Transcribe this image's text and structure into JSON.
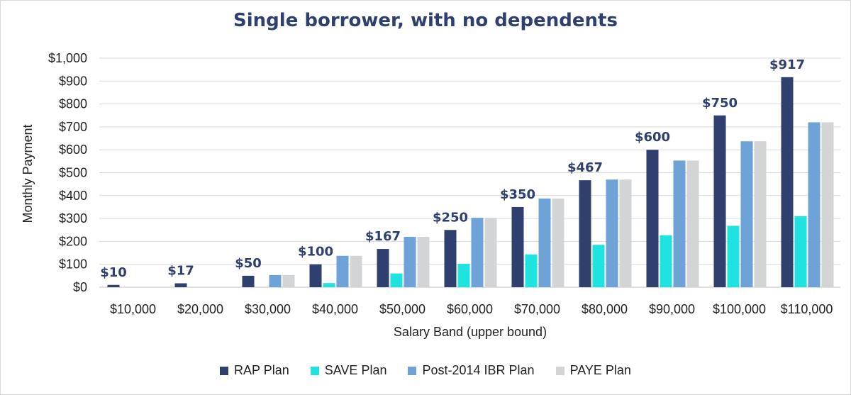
{
  "chart_data": {
    "type": "bar",
    "title": "Single borrower, with no dependents",
    "xlabel": "Salary Band (upper bound)",
    "ylabel": "Monthly Payment",
    "ylim": [
      0,
      1000
    ],
    "yticks": [
      "$0",
      "$100",
      "$200",
      "$300",
      "$400",
      "$500",
      "$600",
      "$700",
      "$800",
      "$900",
      "$1,000"
    ],
    "grid": true,
    "legend_position": "bottom",
    "categories": [
      "$10,000",
      "$20,000",
      "$30,000",
      "$40,000",
      "$50,000",
      "$60,000",
      "$70,000",
      "$80,000",
      "$90,000",
      "$100,000",
      "$110,000"
    ],
    "series": [
      {
        "name": "RAP Plan",
        "color": "#2f3f6e",
        "values": [
          10,
          17,
          50,
          100,
          167,
          250,
          350,
          467,
          600,
          750,
          917
        ],
        "labels": [
          "$10",
          "$17",
          "$50",
          "$100",
          "$167",
          "$250",
          "$350",
          "$467",
          "$600",
          "$750",
          "$917"
        ]
      },
      {
        "name": "SAVE Plan",
        "color": "#1ee3e0",
        "values": [
          0,
          0,
          0,
          18,
          60,
          102,
          143,
          185,
          227,
          268,
          310
        ]
      },
      {
        "name": "Post-2014 IBR Plan",
        "color": "#6fa3d8",
        "values": [
          0,
          0,
          53,
          137,
          220,
          303,
          387,
          470,
          553,
          637,
          720
        ]
      },
      {
        "name": "PAYE Plan",
        "color": "#d3d4d6",
        "values": [
          0,
          0,
          53,
          137,
          220,
          303,
          387,
          470,
          553,
          637,
          720
        ]
      }
    ]
  }
}
